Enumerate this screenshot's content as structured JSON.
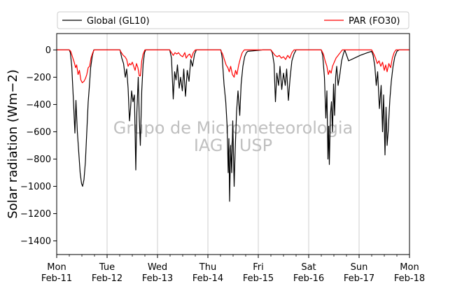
{
  "chart_data": {
    "type": "line",
    "ylabel": "Solar radiation (Wm−2)",
    "ylim": [
      -1500,
      120
    ],
    "yticks": [
      0,
      -200,
      -400,
      -600,
      -800,
      -1000,
      -1200,
      -1400
    ],
    "xlim": [
      "2019-02-11",
      "2019-02-18"
    ],
    "xticks": [
      {
        "date": "2019-02-11",
        "day": "Mon",
        "date_label": "Feb-11"
      },
      {
        "date": "2019-02-12",
        "day": "Tue",
        "date_label": "Feb-12"
      },
      {
        "date": "2019-02-13",
        "day": "Wed",
        "date_label": "Feb-13"
      },
      {
        "date": "2019-02-14",
        "day": "Thu",
        "date_label": "Feb-14"
      },
      {
        "date": "2019-02-15",
        "day": "Fri",
        "date_label": "Feb-15"
      },
      {
        "date": "2019-02-16",
        "day": "Sat",
        "date_label": "Feb-16"
      },
      {
        "date": "2019-02-17",
        "day": "Sun",
        "date_label": "Feb-17"
      },
      {
        "date": "2019-02-18",
        "day": "Mon",
        "date_label": "Feb-18"
      }
    ],
    "grid": "vertical",
    "legend_position": "top, above plot",
    "watermark": [
      "Grupo de Micrometeorologia",
      "IAG / USP"
    ],
    "series": [
      {
        "name": "Global (GL10)",
        "color": "#000000",
        "points": [
          [
            "2019-02-11T00:00",
            0
          ],
          [
            "2019-02-11T06:00",
            0
          ],
          [
            "2019-02-11T06:30",
            -20
          ],
          [
            "2019-02-11T07:10",
            -120
          ],
          [
            "2019-02-11T08:00",
            -380
          ],
          [
            "2019-02-11T08:40",
            -610
          ],
          [
            "2019-02-11T09:10",
            -370
          ],
          [
            "2019-02-11T09:50",
            -600
          ],
          [
            "2019-02-11T10:30",
            -750
          ],
          [
            "2019-02-11T11:10",
            -900
          ],
          [
            "2019-02-11T11:50",
            -980
          ],
          [
            "2019-02-11T12:20",
            -1000
          ],
          [
            "2019-02-11T13:00",
            -950
          ],
          [
            "2019-02-11T13:40",
            -820
          ],
          [
            "2019-02-11T14:20",
            -600
          ],
          [
            "2019-02-11T15:00",
            -380
          ],
          [
            "2019-02-11T15:30",
            -280
          ],
          [
            "2019-02-11T16:10",
            -130
          ],
          [
            "2019-02-11T17:00",
            -40
          ],
          [
            "2019-02-11T17:40",
            0
          ],
          [
            "2019-02-12T06:10",
            0
          ],
          [
            "2019-02-12T07:00",
            -60
          ],
          [
            "2019-02-12T07:50",
            -100
          ],
          [
            "2019-02-12T08:40",
            -200
          ],
          [
            "2019-02-12T09:20",
            -140
          ],
          [
            "2019-02-12T10:00",
            -280
          ],
          [
            "2019-02-12T10:40",
            -520
          ],
          [
            "2019-02-12T11:10",
            -430
          ],
          [
            "2019-02-12T11:40",
            -300
          ],
          [
            "2019-02-12T12:20",
            -380
          ],
          [
            "2019-02-12T13:00",
            -330
          ],
          [
            "2019-02-12T13:40",
            -880
          ],
          [
            "2019-02-12T14:10",
            -460
          ],
          [
            "2019-02-12T14:50",
            -200
          ],
          [
            "2019-02-12T15:20",
            -510
          ],
          [
            "2019-02-12T15:50",
            -700
          ],
          [
            "2019-02-12T16:30",
            -300
          ],
          [
            "2019-02-12T17:10",
            -100
          ],
          [
            "2019-02-12T17:50",
            -20
          ],
          [
            "2019-02-12T18:20",
            0
          ],
          [
            "2019-02-13T05:50",
            0
          ],
          [
            "2019-02-13T06:40",
            -60
          ],
          [
            "2019-02-13T07:30",
            -360
          ],
          [
            "2019-02-13T08:10",
            -160
          ],
          [
            "2019-02-13T08:50",
            -220
          ],
          [
            "2019-02-13T09:30",
            -110
          ],
          [
            "2019-02-13T10:20",
            -280
          ],
          [
            "2019-02-13T11:00",
            -200
          ],
          [
            "2019-02-13T11:50",
            -300
          ],
          [
            "2019-02-13T12:30",
            -140
          ],
          [
            "2019-02-13T13:20",
            -340
          ],
          [
            "2019-02-13T14:10",
            -150
          ],
          [
            "2019-02-13T15:00",
            -230
          ],
          [
            "2019-02-13T15:50",
            -70
          ],
          [
            "2019-02-13T16:40",
            -120
          ],
          [
            "2019-02-13T17:40",
            -30
          ],
          [
            "2019-02-13T18:30",
            0
          ],
          [
            "2019-02-14T06:10",
            0
          ],
          [
            "2019-02-14T06:50",
            -60
          ],
          [
            "2019-02-14T07:40",
            -250
          ],
          [
            "2019-02-14T08:30",
            -380
          ],
          [
            "2019-02-14T09:10",
            -560
          ],
          [
            "2019-02-14T09:40",
            -900
          ],
          [
            "2019-02-14T10:00",
            -650
          ],
          [
            "2019-02-14T10:20",
            -1110
          ],
          [
            "2019-02-14T10:50",
            -700
          ],
          [
            "2019-02-14T11:20",
            -900
          ],
          [
            "2019-02-14T11:50",
            -520
          ],
          [
            "2019-02-14T12:30",
            -1000
          ],
          [
            "2019-02-14T13:00",
            -730
          ],
          [
            "2019-02-14T13:40",
            -450
          ],
          [
            "2019-02-14T14:20",
            -300
          ],
          [
            "2019-02-14T15:10",
            -480
          ],
          [
            "2019-02-14T15:50",
            -250
          ],
          [
            "2019-02-14T16:40",
            -120
          ],
          [
            "2019-02-14T17:30",
            -50
          ],
          [
            "2019-02-14T18:20",
            -20
          ],
          [
            "2019-02-14T19:00",
            -10
          ],
          [
            "2019-02-15T02:00",
            0
          ],
          [
            "2019-02-15T06:00",
            0
          ],
          [
            "2019-02-15T06:40",
            -20
          ],
          [
            "2019-02-15T07:30",
            -100
          ],
          [
            "2019-02-15T08:10",
            -380
          ],
          [
            "2019-02-15T08:50",
            -170
          ],
          [
            "2019-02-15T09:40",
            -260
          ],
          [
            "2019-02-15T10:20",
            -120
          ],
          [
            "2019-02-15T11:10",
            -290
          ],
          [
            "2019-02-15T12:00",
            -170
          ],
          [
            "2019-02-15T12:50",
            -260
          ],
          [
            "2019-02-15T13:30",
            -140
          ],
          [
            "2019-02-15T14:20",
            -370
          ],
          [
            "2019-02-15T15:10",
            -200
          ],
          [
            "2019-02-15T16:00",
            -80
          ],
          [
            "2019-02-15T17:00",
            -30
          ],
          [
            "2019-02-15T18:00",
            0
          ],
          [
            "2019-02-16T06:00",
            0
          ],
          [
            "2019-02-16T06:40",
            -40
          ],
          [
            "2019-02-16T07:30",
            -200
          ],
          [
            "2019-02-16T08:10",
            -500
          ],
          [
            "2019-02-16T08:40",
            -300
          ],
          [
            "2019-02-16T09:10",
            -800
          ],
          [
            "2019-02-16T09:30",
            -560
          ],
          [
            "2019-02-16T09:50",
            -840
          ],
          [
            "2019-02-16T10:20",
            -480
          ],
          [
            "2019-02-16T10:50",
            -380
          ],
          [
            "2019-02-16T11:20",
            -600
          ],
          [
            "2019-02-16T11:50",
            -250
          ],
          [
            "2019-02-16T12:20",
            -480
          ],
          [
            "2019-02-16T12:50",
            -200
          ],
          [
            "2019-02-16T13:20",
            -120
          ],
          [
            "2019-02-16T14:00",
            -260
          ],
          [
            "2019-02-16T14:50",
            -180
          ],
          [
            "2019-02-16T15:40",
            -80
          ],
          [
            "2019-02-16T16:30",
            -30
          ],
          [
            "2019-02-16T17:10",
            0
          ],
          [
            "2019-02-16T19:00",
            -80
          ],
          [
            "2019-02-17T00:30",
            -40
          ],
          [
            "2019-02-17T04:00",
            -20
          ],
          [
            "2019-02-17T06:00",
            -10
          ],
          [
            "2019-02-17T06:40",
            -40
          ],
          [
            "2019-02-17T07:30",
            -120
          ],
          [
            "2019-02-17T08:10",
            -260
          ],
          [
            "2019-02-17T08:50",
            -160
          ],
          [
            "2019-02-17T09:40",
            -430
          ],
          [
            "2019-02-17T10:30",
            -260
          ],
          [
            "2019-02-17T11:10",
            -600
          ],
          [
            "2019-02-17T11:40",
            -330
          ],
          [
            "2019-02-17T12:20",
            -770
          ],
          [
            "2019-02-17T12:50",
            -420
          ],
          [
            "2019-02-17T13:20",
            -700
          ],
          [
            "2019-02-17T13:50",
            -600
          ],
          [
            "2019-02-17T14:40",
            -360
          ],
          [
            "2019-02-17T15:20",
            -230
          ],
          [
            "2019-02-17T16:10",
            -120
          ],
          [
            "2019-02-17T17:00",
            -50
          ],
          [
            "2019-02-17T18:00",
            -10
          ],
          [
            "2019-02-17T19:00",
            0
          ],
          [
            "2019-02-18T00:00",
            0
          ]
        ]
      },
      {
        "name": "PAR (FO30)",
        "color": "#ff0000",
        "points": [
          [
            "2019-02-11T00:00",
            0
          ],
          [
            "2019-02-11T06:00",
            0
          ],
          [
            "2019-02-11T06:40",
            -10
          ],
          [
            "2019-02-11T07:30",
            -50
          ],
          [
            "2019-02-11T08:20",
            -90
          ],
          [
            "2019-02-11T09:00",
            -130
          ],
          [
            "2019-02-11T09:30",
            -110
          ],
          [
            "2019-02-11T10:10",
            -180
          ],
          [
            "2019-02-11T10:50",
            -150
          ],
          [
            "2019-02-11T11:30",
            -220
          ],
          [
            "2019-02-11T12:10",
            -240
          ],
          [
            "2019-02-11T13:00",
            -230
          ],
          [
            "2019-02-11T13:40",
            -210
          ],
          [
            "2019-02-11T14:20",
            -180
          ],
          [
            "2019-02-11T15:00",
            -130
          ],
          [
            "2019-02-11T15:40",
            -120
          ],
          [
            "2019-02-11T16:20",
            -60
          ],
          [
            "2019-02-11T17:10",
            -20
          ],
          [
            "2019-02-11T17:50",
            0
          ],
          [
            "2019-02-12T06:00",
            0
          ],
          [
            "2019-02-12T06:50",
            -20
          ],
          [
            "2019-02-12T07:40",
            -40
          ],
          [
            "2019-02-12T08:30",
            -50
          ],
          [
            "2019-02-12T09:20",
            -70
          ],
          [
            "2019-02-12T10:00",
            -120
          ],
          [
            "2019-02-12T10:40",
            -100
          ],
          [
            "2019-02-12T11:20",
            -110
          ],
          [
            "2019-02-12T12:00",
            -90
          ],
          [
            "2019-02-12T12:40",
            -120
          ],
          [
            "2019-02-12T13:20",
            -150
          ],
          [
            "2019-02-12T14:00",
            -100
          ],
          [
            "2019-02-12T14:40",
            -130
          ],
          [
            "2019-02-12T15:20",
            -190
          ],
          [
            "2019-02-12T15:50",
            -190
          ],
          [
            "2019-02-12T16:30",
            -80
          ],
          [
            "2019-02-12T17:10",
            -30
          ],
          [
            "2019-02-12T18:00",
            0
          ],
          [
            "2019-02-13T05:50",
            0
          ],
          [
            "2019-02-13T06:40",
            -20
          ],
          [
            "2019-02-13T07:30",
            -40
          ],
          [
            "2019-02-13T08:20",
            -20
          ],
          [
            "2019-02-13T09:10",
            -30
          ],
          [
            "2019-02-13T10:00",
            -20
          ],
          [
            "2019-02-13T11:00",
            -40
          ],
          [
            "2019-02-13T12:00",
            -50
          ],
          [
            "2019-02-13T13:00",
            -20
          ],
          [
            "2019-02-13T13:40",
            -60
          ],
          [
            "2019-02-13T14:30",
            -40
          ],
          [
            "2019-02-13T15:20",
            -30
          ],
          [
            "2019-02-13T16:10",
            -60
          ],
          [
            "2019-02-13T17:00",
            -20
          ],
          [
            "2019-02-13T18:00",
            0
          ],
          [
            "2019-02-14T06:00",
            0
          ],
          [
            "2019-02-14T07:00",
            -30
          ],
          [
            "2019-02-14T07:50",
            -70
          ],
          [
            "2019-02-14T08:40",
            -110
          ],
          [
            "2019-02-14T09:30",
            -130
          ],
          [
            "2019-02-14T10:10",
            -160
          ],
          [
            "2019-02-14T10:50",
            -120
          ],
          [
            "2019-02-14T11:40",
            -180
          ],
          [
            "2019-02-14T12:30",
            -200
          ],
          [
            "2019-02-14T13:10",
            -150
          ],
          [
            "2019-02-14T13:50",
            -180
          ],
          [
            "2019-02-14T14:40",
            -110
          ],
          [
            "2019-02-14T15:30",
            -60
          ],
          [
            "2019-02-14T16:20",
            -20
          ],
          [
            "2019-02-14T17:20",
            0
          ],
          [
            "2019-02-15T06:00",
            0
          ],
          [
            "2019-02-15T07:00",
            -20
          ],
          [
            "2019-02-15T08:00",
            -40
          ],
          [
            "2019-02-15T09:00",
            -50
          ],
          [
            "2019-02-15T10:00",
            -40
          ],
          [
            "2019-02-15T11:00",
            -60
          ],
          [
            "2019-02-15T12:00",
            -50
          ],
          [
            "2019-02-15T13:00",
            -70
          ],
          [
            "2019-02-15T14:00",
            -40
          ],
          [
            "2019-02-15T15:00",
            -60
          ],
          [
            "2019-02-15T16:00",
            -20
          ],
          [
            "2019-02-15T17:00",
            0
          ],
          [
            "2019-02-16T06:00",
            0
          ],
          [
            "2019-02-16T07:00",
            -30
          ],
          [
            "2019-02-16T07:50",
            -80
          ],
          [
            "2019-02-16T08:40",
            -120
          ],
          [
            "2019-02-16T09:20",
            -180
          ],
          [
            "2019-02-16T10:00",
            -150
          ],
          [
            "2019-02-16T10:40",
            -170
          ],
          [
            "2019-02-16T11:20",
            -120
          ],
          [
            "2019-02-16T12:10",
            -90
          ],
          [
            "2019-02-16T13:00",
            -60
          ],
          [
            "2019-02-16T14:00",
            -40
          ],
          [
            "2019-02-16T15:00",
            -20
          ],
          [
            "2019-02-16T16:00",
            0
          ],
          [
            "2019-02-17T06:00",
            0
          ],
          [
            "2019-02-17T07:00",
            -30
          ],
          [
            "2019-02-17T07:50",
            -60
          ],
          [
            "2019-02-17T08:40",
            -100
          ],
          [
            "2019-02-17T09:30",
            -80
          ],
          [
            "2019-02-17T10:20",
            -120
          ],
          [
            "2019-02-17T11:10",
            -90
          ],
          [
            "2019-02-17T12:00",
            -150
          ],
          [
            "2019-02-17T12:40",
            -110
          ],
          [
            "2019-02-17T13:20",
            -160
          ],
          [
            "2019-02-17T14:10",
            -100
          ],
          [
            "2019-02-17T15:00",
            -130
          ],
          [
            "2019-02-17T15:50",
            -60
          ],
          [
            "2019-02-17T16:40",
            -20
          ],
          [
            "2019-02-17T17:30",
            0
          ],
          [
            "2019-02-18T00:00",
            0
          ]
        ]
      }
    ]
  }
}
